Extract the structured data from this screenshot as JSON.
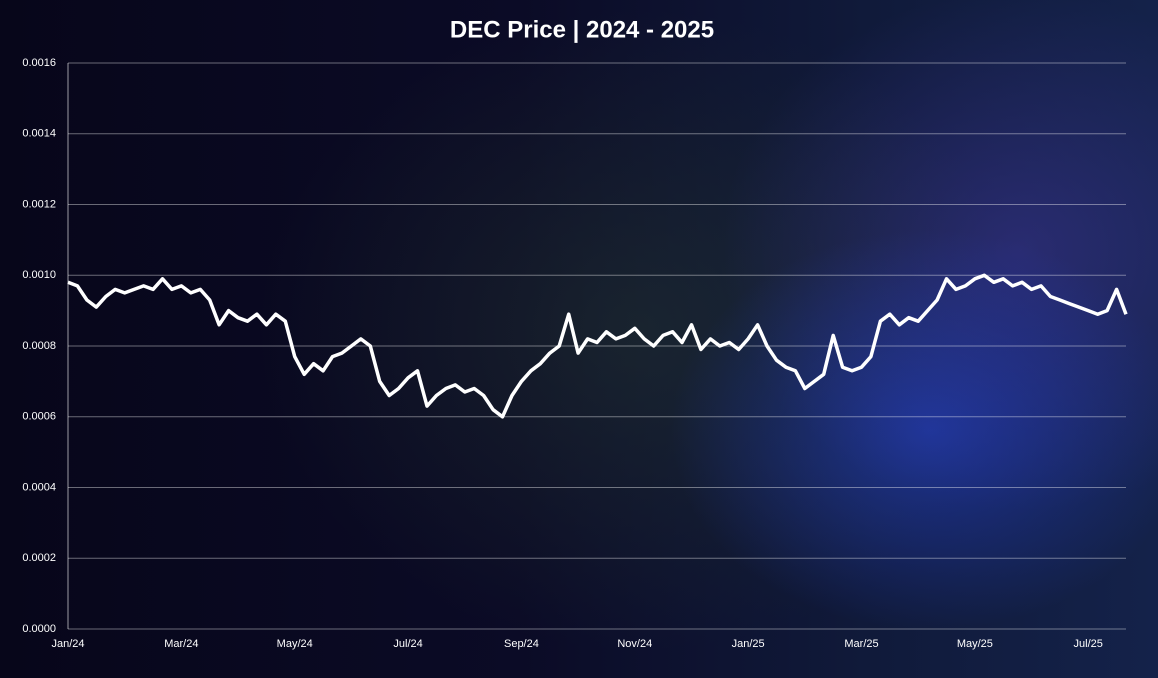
{
  "chart_data": {
    "type": "line",
    "title": "DEC Price  |  2024 - 2025",
    "categories": [
      "Jan/24",
      null,
      null,
      null,
      null,
      null,
      null,
      null,
      null,
      null,
      null,
      null,
      "Mar/24",
      null,
      null,
      null,
      null,
      null,
      null,
      null,
      null,
      null,
      null,
      null,
      "May/24",
      null,
      null,
      null,
      null,
      null,
      null,
      null,
      null,
      null,
      null,
      null,
      "Jul/24",
      null,
      null,
      null,
      null,
      null,
      null,
      null,
      null,
      null,
      null,
      null,
      "Sep/24",
      null,
      null,
      null,
      null,
      null,
      null,
      null,
      null,
      null,
      null,
      null,
      "Nov/24",
      null,
      null,
      null,
      null,
      null,
      null,
      null,
      null,
      null,
      null,
      null,
      "Jan/25",
      null,
      null,
      null,
      null,
      null,
      null,
      null,
      null,
      null,
      null,
      null,
      "Mar/25",
      null,
      null,
      null,
      null,
      null,
      null,
      null,
      null,
      null,
      null,
      null,
      "May/25",
      null,
      null,
      null,
      null,
      null,
      null,
      null,
      null,
      null,
      null,
      null,
      "Jul/25",
      null,
      null,
      null,
      null
    ],
    "series": [
      {
        "name": "DEC",
        "color": "#ffffff",
        "values": [
          0.00098,
          0.00097,
          0.00093,
          0.00091,
          0.00094,
          0.00096,
          0.00095,
          0.00096,
          0.00097,
          0.00096,
          0.00099,
          0.00096,
          0.00097,
          0.00095,
          0.00096,
          0.00093,
          0.00086,
          0.0009,
          0.00088,
          0.00087,
          0.00089,
          0.00086,
          0.00089,
          0.00087,
          0.00077,
          0.00072,
          0.00075,
          0.00073,
          0.00077,
          0.00078,
          0.0008,
          0.00082,
          0.0008,
          0.0007,
          0.00066,
          0.00068,
          0.00071,
          0.00073,
          0.00063,
          0.00066,
          0.00068,
          0.00069,
          0.00067,
          0.00068,
          0.00066,
          0.00062,
          0.0006,
          0.00066,
          0.0007,
          0.00073,
          0.00075,
          0.00078,
          0.0008,
          0.00089,
          0.00078,
          0.00082,
          0.00081,
          0.00084,
          0.00082,
          0.00083,
          0.00085,
          0.00082,
          0.0008,
          0.00083,
          0.00084,
          0.00081,
          0.00086,
          0.00079,
          0.00082,
          0.0008,
          0.00081,
          0.00079,
          0.00082,
          0.00086,
          0.0008,
          0.00076,
          0.00074,
          0.00073,
          0.00068,
          0.0007,
          0.00072,
          0.00083,
          0.00074,
          0.00073,
          0.00074,
          0.00077,
          0.00087,
          0.00089,
          0.00086,
          0.00088,
          0.00087,
          0.0009,
          0.00093,
          0.00099,
          0.00096,
          0.00097,
          0.00099,
          0.001,
          0.00098,
          0.00099,
          0.00097,
          0.00098,
          0.00096,
          0.00097,
          0.00094,
          0.00093,
          0.00092,
          0.00091,
          0.0009,
          0.00089,
          0.0009,
          0.00096,
          0.00089
        ]
      }
    ],
    "ylim": [
      0,
      0.0016
    ],
    "yticks": [
      {
        "value": 0,
        "label": "0.0000"
      },
      0.0002,
      0.0004,
      0.0006,
      0.0008,
      {
        "value": 0.001,
        "label": "0.0010"
      },
      0.0012,
      0.0014,
      0.0016
    ],
    "grid": true
  }
}
